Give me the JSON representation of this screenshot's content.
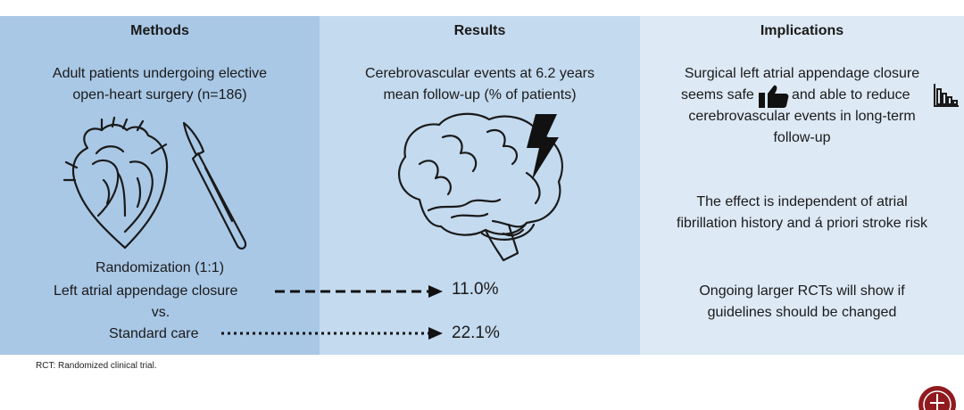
{
  "methods": {
    "title": "Methods",
    "population_line1": "Adult patients undergoing elective",
    "population_line2": "open-heart surgery (n=186)",
    "randomization": "Randomization (1:1)",
    "arm1": "Left atrial appendage closure",
    "vs": "vs.",
    "arm2": "Standard care",
    "icons": [
      "heart-icon",
      "scalpel-icon"
    ]
  },
  "results": {
    "title": "Results",
    "outcome_line1": "Cerebrovascular events at 6.2 years",
    "outcome_line2": "mean follow-up (% of patients)",
    "arm1_value": "11.0%",
    "arm2_value": "22.1%",
    "icons": [
      "brain-icon",
      "lightning-icon"
    ]
  },
  "implications": {
    "title": "Implications",
    "p1_line1": "Surgical left atrial appendage closure",
    "p1_line2a": "seems safe",
    "p1_line2b": "and able to reduce",
    "p1_line3": "cerebrovascular events in long-term",
    "p1_line4": "follow-up",
    "p2_line1": "The effect is independent of atrial",
    "p2_line2": "fibrillation history and á priori stroke risk",
    "p3_line1": "Ongoing larger RCTs will show if",
    "p3_line2": "guidelines should be changed",
    "icons": [
      "thumbs-up-icon",
      "bar-chart-down-icon"
    ]
  },
  "footnote": "RCT: Randomized clinical trial.",
  "colors": {
    "methods_bg": "#a9c8e6",
    "results_bg": "#c4daef",
    "implications_bg": "#dde9f5"
  }
}
